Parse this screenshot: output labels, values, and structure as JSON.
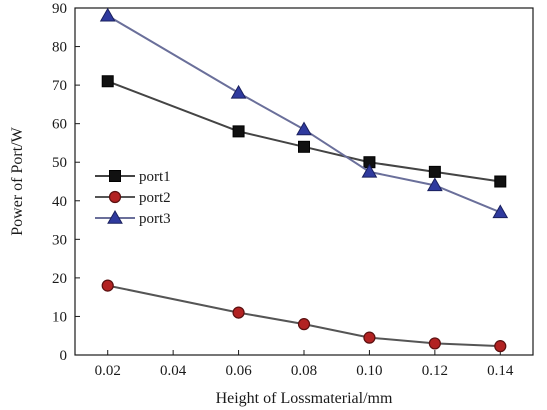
{
  "chart_data": {
    "type": "line",
    "xlabel": "Height of Lossmaterial/mm",
    "ylabel": "Power of Port/W",
    "xlim": [
      0.01,
      0.15
    ],
    "ylim": [
      0,
      90
    ],
    "x_ticks": [
      "0.02",
      "0.04",
      "0.06",
      "0.08",
      "0.10",
      "0.12",
      "0.14"
    ],
    "y_ticks": [
      "0",
      "10",
      "20",
      "30",
      "40",
      "50",
      "60",
      "70",
      "80",
      "90"
    ],
    "grid": false,
    "legend_position": "left-middle",
    "series": [
      {
        "name": "port1",
        "marker": "square",
        "color": "#111111",
        "line_color": "#444444",
        "x": [
          0.02,
          0.06,
          0.08,
          0.1,
          0.12,
          0.14
        ],
        "y": [
          71,
          58,
          54,
          50,
          47.5,
          45
        ]
      },
      {
        "name": "port2",
        "marker": "circle",
        "color": "#b22222",
        "line_color": "#555555",
        "x": [
          0.02,
          0.06,
          0.08,
          0.1,
          0.12,
          0.14
        ],
        "y": [
          18,
          11,
          8,
          4.5,
          3,
          2.3
        ]
      },
      {
        "name": "port3",
        "marker": "triangle",
        "color": "#2f3a9e",
        "line_color": "#6a6f9a",
        "x": [
          0.02,
          0.06,
          0.08,
          0.1,
          0.12,
          0.14
        ],
        "y": [
          88,
          68,
          58.5,
          47.5,
          44,
          37
        ]
      }
    ]
  }
}
